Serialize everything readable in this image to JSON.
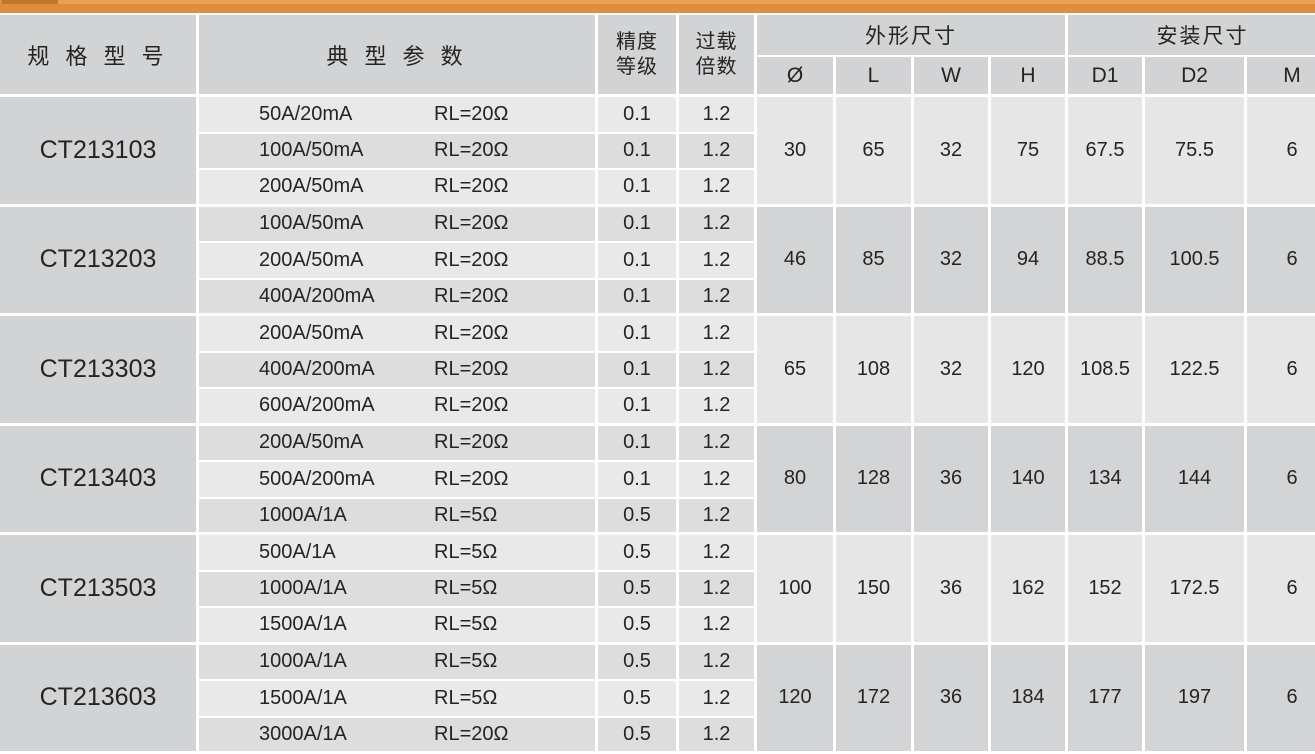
{
  "topbar": {
    "main_color": "#de8e3c",
    "left_chip_color": "#c0772c",
    "right_strip_color": "#e9a156"
  },
  "table": {
    "headers": {
      "model": "规 格 型 号",
      "params": "典 型 参 数",
      "accuracy_line1": "精度",
      "accuracy_line2": "等级",
      "overload_line1": "过载",
      "overload_line2": "倍数",
      "outline": "外形尺寸",
      "mounting": "安装尺寸",
      "dims": [
        "Ø",
        "L",
        "W",
        "H",
        "D1",
        "D2",
        "M"
      ]
    },
    "groups": [
      {
        "model": "CT213103",
        "rows": [
          {
            "ratio": "50A/20mA",
            "rl": "RL=20Ω",
            "accuracy": "0.1",
            "overload": "1.2"
          },
          {
            "ratio": "100A/50mA",
            "rl": "RL=20Ω",
            "accuracy": "0.1",
            "overload": "1.2"
          },
          {
            "ratio": "200A/50mA",
            "rl": "RL=20Ω",
            "accuracy": "0.1",
            "overload": "1.2"
          }
        ],
        "dims": [
          "30",
          "65",
          "32",
          "75",
          "67.5",
          "75.5",
          "6"
        ]
      },
      {
        "model": "CT213203",
        "rows": [
          {
            "ratio": "100A/50mA",
            "rl": "RL=20Ω",
            "accuracy": "0.1",
            "overload": "1.2"
          },
          {
            "ratio": "200A/50mA",
            "rl": "RL=20Ω",
            "accuracy": "0.1",
            "overload": "1.2"
          },
          {
            "ratio": "400A/200mA",
            "rl": "RL=20Ω",
            "accuracy": "0.1",
            "overload": "1.2"
          }
        ],
        "dims": [
          "46",
          "85",
          "32",
          "94",
          "88.5",
          "100.5",
          "6"
        ]
      },
      {
        "model": "CT213303",
        "rows": [
          {
            "ratio": "200A/50mA",
            "rl": "RL=20Ω",
            "accuracy": "0.1",
            "overload": "1.2"
          },
          {
            "ratio": "400A/200mA",
            "rl": "RL=20Ω",
            "accuracy": "0.1",
            "overload": "1.2"
          },
          {
            "ratio": "600A/200mA",
            "rl": "RL=20Ω",
            "accuracy": "0.1",
            "overload": "1.2"
          }
        ],
        "dims": [
          "65",
          "108",
          "32",
          "120",
          "108.5",
          "122.5",
          "6"
        ]
      },
      {
        "model": "CT213403",
        "rows": [
          {
            "ratio": "200A/50mA",
            "rl": "RL=20Ω",
            "accuracy": "0.1",
            "overload": "1.2"
          },
          {
            "ratio": "500A/200mA",
            "rl": "RL=20Ω",
            "accuracy": "0.1",
            "overload": "1.2"
          },
          {
            "ratio": "1000A/1A",
            "rl": "RL=5Ω",
            "accuracy": "0.5",
            "overload": "1.2"
          }
        ],
        "dims": [
          "80",
          "128",
          "36",
          "140",
          "134",
          "144",
          "6"
        ]
      },
      {
        "model": "CT213503",
        "rows": [
          {
            "ratio": "500A/1A",
            "rl": "RL=5Ω",
            "accuracy": "0.5",
            "overload": "1.2"
          },
          {
            "ratio": "1000A/1A",
            "rl": "RL=5Ω",
            "accuracy": "0.5",
            "overload": "1.2"
          },
          {
            "ratio": "1500A/1A",
            "rl": "RL=5Ω",
            "accuracy": "0.5",
            "overload": "1.2"
          }
        ],
        "dims": [
          "100",
          "150",
          "36",
          "162",
          "152",
          "172.5",
          "6"
        ]
      },
      {
        "model": "CT213603",
        "rows": [
          {
            "ratio": "1000A/1A",
            "rl": "RL=5Ω",
            "accuracy": "0.5",
            "overload": "1.2"
          },
          {
            "ratio": "1500A/1A",
            "rl": "RL=5Ω",
            "accuracy": "0.5",
            "overload": "1.2"
          },
          {
            "ratio": "3000A/1A",
            "rl": "RL=20Ω",
            "accuracy": "0.5",
            "overload": "1.2"
          }
        ],
        "dims": [
          "120",
          "172",
          "36",
          "184",
          "177",
          "197",
          "6"
        ]
      }
    ]
  }
}
